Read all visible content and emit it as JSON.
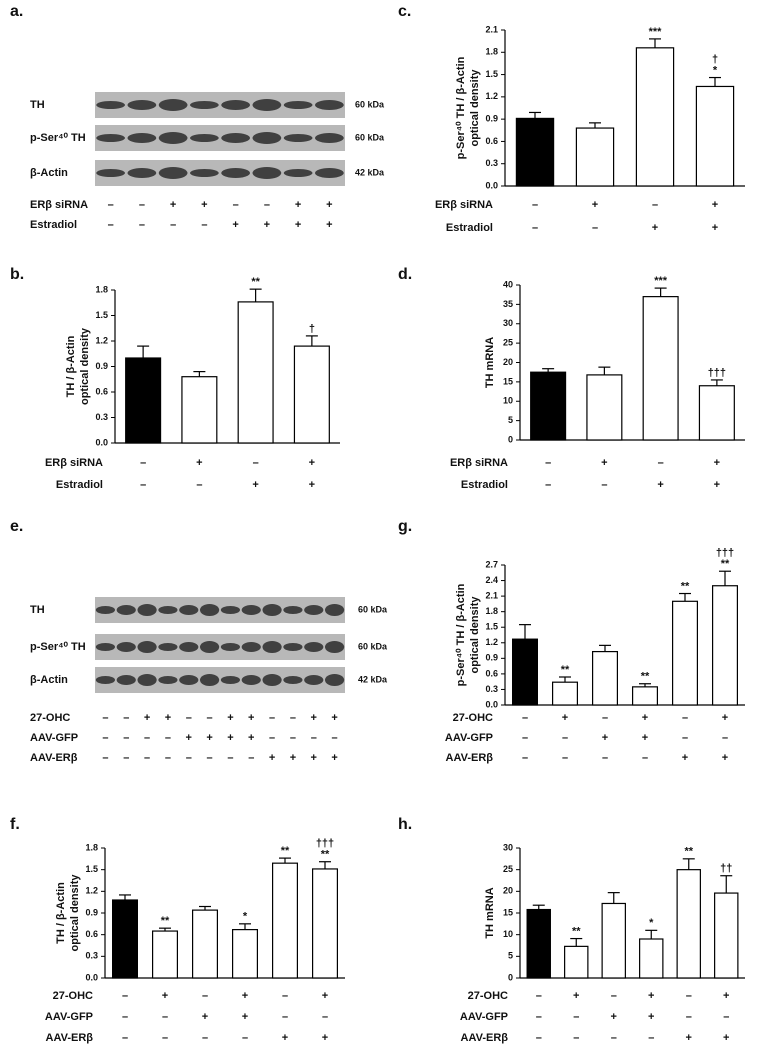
{
  "chart_data": [
    {
      "type": "bar",
      "panel": "b.",
      "ylabel": [
        "TH / β-Actin",
        "optical density"
      ],
      "values": [
        1.0,
        0.78,
        1.66,
        1.14
      ],
      "errors": [
        0.14,
        0.06,
        0.15,
        0.12
      ],
      "colors": [
        "#000000",
        "#ffffff",
        "#ffffff",
        "#ffffff"
      ],
      "annotations": [
        null,
        null,
        [
          "**"
        ],
        [
          "†"
        ]
      ],
      "ylim": [
        0,
        1.8
      ],
      "yticks": [
        {
          "value": 0,
          "label": "0.0"
        },
        0.3,
        0.6,
        0.9,
        1.2,
        1.5,
        1.8
      ],
      "conditions": [
        {
          "name": "ERβ siRNA",
          "signs": [
            "–",
            "+",
            "–",
            "+"
          ]
        },
        {
          "name": "Estradiol",
          "signs": [
            "–",
            "–",
            "+",
            "+"
          ]
        }
      ]
    },
    {
      "type": "bar",
      "panel": "c.",
      "ylabel": [
        "p-Ser⁴⁰ TH / β-Actin",
        "optical density"
      ],
      "values": [
        0.91,
        0.78,
        1.86,
        1.34
      ],
      "errors": [
        0.08,
        0.07,
        0.12,
        0.12
      ],
      "colors": [
        "#000000",
        "#ffffff",
        "#ffffff",
        "#ffffff"
      ],
      "annotations": [
        null,
        null,
        [
          "***"
        ],
        [
          "†",
          "*"
        ]
      ],
      "ylim": [
        0,
        2.1
      ],
      "yticks": [
        {
          "value": 0,
          "label": "0.0"
        },
        0.3,
        0.6,
        0.9,
        1.2,
        1.5,
        1.8,
        2.1
      ],
      "conditions": [
        {
          "name": "ERβ siRNA",
          "signs": [
            "–",
            "+",
            "–",
            "+"
          ]
        },
        {
          "name": "Estradiol",
          "signs": [
            "–",
            "–",
            "+",
            "+"
          ]
        }
      ]
    },
    {
      "type": "bar",
      "panel": "d.",
      "ylabel": [
        "TH  mRNA"
      ],
      "values": [
        17.5,
        16.8,
        37,
        14
      ],
      "errors": [
        0.9,
        2,
        2.2,
        1.5
      ],
      "colors": [
        "#000000",
        "#ffffff",
        "#ffffff",
        "#ffffff"
      ],
      "annotations": [
        null,
        null,
        [
          "***"
        ],
        [
          "†††"
        ]
      ],
      "ylim": [
        0,
        40
      ],
      "yticks": [
        0,
        5,
        10,
        15,
        20,
        25,
        30,
        35,
        40
      ],
      "conditions": [
        {
          "name": "ERβ siRNA",
          "signs": [
            "–",
            "+",
            "–",
            "+"
          ]
        },
        {
          "name": "Estradiol",
          "signs": [
            "–",
            "–",
            "+",
            "+"
          ]
        }
      ]
    },
    {
      "type": "bar",
      "panel": "f.",
      "ylabel": [
        "TH / β-Actin",
        "optical density"
      ],
      "values": [
        1.08,
        0.65,
        0.94,
        0.67,
        1.59,
        1.51
      ],
      "errors": [
        0.07,
        0.04,
        0.05,
        0.08,
        0.07,
        0.1
      ],
      "colors": [
        "#000000",
        "#ffffff",
        "#ffffff",
        "#ffffff",
        "#ffffff",
        "#ffffff"
      ],
      "annotations": [
        null,
        [
          "**"
        ],
        null,
        [
          "*"
        ],
        [
          "**"
        ],
        [
          "†††",
          "**"
        ]
      ],
      "ylim": [
        0,
        1.8
      ],
      "yticks": [
        {
          "value": 0,
          "label": "0.0"
        },
        0.3,
        0.6,
        0.9,
        1.2,
        1.5,
        1.8
      ],
      "conditions": [
        {
          "name": "27-OHC",
          "signs": [
            "–",
            "+",
            "–",
            "+",
            "–",
            "+"
          ]
        },
        {
          "name": "AAV-GFP",
          "signs": [
            "–",
            "–",
            "+",
            "+",
            "–",
            "–"
          ]
        },
        {
          "name": "AAV-ERβ",
          "signs": [
            "–",
            "–",
            "–",
            "–",
            "+",
            "+"
          ]
        }
      ]
    },
    {
      "type": "bar",
      "panel": "g.",
      "ylabel": [
        "p-Ser⁴⁰ TH / β-Actin",
        "optical density"
      ],
      "values": [
        1.27,
        0.44,
        1.03,
        0.35,
        2.0,
        2.3
      ],
      "errors": [
        0.28,
        0.1,
        0.12,
        0.06,
        0.15,
        0.28
      ],
      "colors": [
        "#000000",
        "#ffffff",
        "#ffffff",
        "#ffffff",
        "#ffffff",
        "#ffffff"
      ],
      "annotations": [
        null,
        [
          "**"
        ],
        null,
        [
          "**"
        ],
        [
          "**"
        ],
        [
          "†††",
          "**"
        ]
      ],
      "ylim": [
        0,
        2.7
      ],
      "yticks": [
        {
          "value": 0,
          "label": "0.0"
        },
        0.3,
        0.6,
        0.9,
        1.2,
        1.5,
        1.8,
        2.1,
        2.4,
        2.7
      ],
      "conditions": [
        {
          "name": "27-OHC",
          "signs": [
            "–",
            "+",
            "–",
            "+",
            "–",
            "+"
          ]
        },
        {
          "name": "AAV-GFP",
          "signs": [
            "–",
            "–",
            "+",
            "+",
            "–",
            "–"
          ]
        },
        {
          "name": "AAV-ERβ",
          "signs": [
            "–",
            "–",
            "–",
            "–",
            "+",
            "+"
          ]
        }
      ]
    },
    {
      "type": "bar",
      "panel": "h.",
      "ylabel": [
        "TH  mRNA"
      ],
      "values": [
        15.8,
        7.3,
        17.2,
        9,
        25,
        19.6
      ],
      "errors": [
        1,
        1.8,
        2.5,
        2,
        2.5,
        4
      ],
      "colors": [
        "#000000",
        "#ffffff",
        "#ffffff",
        "#ffffff",
        "#ffffff",
        "#ffffff"
      ],
      "annotations": [
        null,
        [
          "**"
        ],
        null,
        [
          "*"
        ],
        [
          "**"
        ],
        [
          "††"
        ]
      ],
      "ylim": [
        0,
        30
      ],
      "yticks": [
        0,
        5,
        10,
        15,
        20,
        25,
        30
      ],
      "conditions": [
        {
          "name": "27-OHC",
          "signs": [
            "–",
            "+",
            "–",
            "+",
            "–",
            "+"
          ]
        },
        {
          "name": "AAV-GFP",
          "signs": [
            "–",
            "–",
            "+",
            "+",
            "–",
            "–"
          ]
        },
        {
          "name": "AAV-ERβ",
          "signs": [
            "–",
            "–",
            "–",
            "–",
            "+",
            "+"
          ]
        }
      ]
    }
  ],
  "blots": [
    {
      "panel": "a.",
      "rows": [
        {
          "label": "TH",
          "size": "60 kDa"
        },
        {
          "label": "p-Ser⁴⁰ TH",
          "size": "60 kDa"
        },
        {
          "label": "β-Actin",
          "size": "42 kDa"
        }
      ],
      "conditions": [
        {
          "name": "ERβ siRNA",
          "signs": [
            "–",
            "–",
            "+",
            "+",
            "–",
            "–",
            "+",
            "+"
          ]
        },
        {
          "name": "Estradiol",
          "signs": [
            "–",
            "–",
            "–",
            "–",
            "+",
            "+",
            "+",
            "+"
          ]
        }
      ]
    },
    {
      "panel": "e.",
      "rows": [
        {
          "label": "TH",
          "size": "60 kDa"
        },
        {
          "label": "p-Ser⁴⁰ TH",
          "size": "60 kDa"
        },
        {
          "label": "β-Actin",
          "size": "42 kDa"
        }
      ],
      "conditions": [
        {
          "name": "27-OHC",
          "signs": [
            "–",
            "–",
            "+",
            "+",
            "–",
            "–",
            "+",
            "+",
            "–",
            "–",
            "+",
            "+"
          ]
        },
        {
          "name": "AAV-GFP",
          "signs": [
            "–",
            "–",
            "–",
            "–",
            "+",
            "+",
            "+",
            "+",
            "–",
            "–",
            "–",
            "–"
          ]
        },
        {
          "name": "AAV-ERβ",
          "signs": [
            "–",
            "–",
            "–",
            "–",
            "–",
            "–",
            "–",
            "–",
            "+",
            "+",
            "+",
            "+"
          ]
        }
      ]
    }
  ]
}
